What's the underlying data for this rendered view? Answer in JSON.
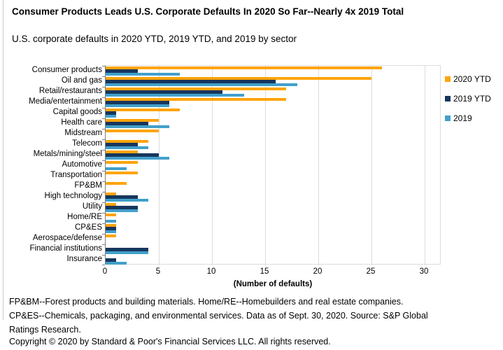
{
  "header": {
    "title": "Consumer Products Leads U.S. Corporate Defaults In 2020 So Far--Nearly 4x 2019 Total",
    "subtitle": "U.S. corporate defaults in 2020 YTD, 2019 YTD, and 2019 by sector"
  },
  "chart_data": {
    "type": "bar",
    "orientation": "horizontal",
    "title": "Consumer Products Leads U.S. Corporate Defaults In 2020 So Far--Nearly 4x 2019 Total",
    "subtitle": "U.S. corporate defaults in 2020 YTD, 2019 YTD, and 2019 by sector",
    "categories": [
      "Consumer products",
      "Oil and gas",
      "Retail/restaurants",
      "Media/entertainment",
      "Capital goods",
      "Health care",
      "Midstream",
      "Telecom",
      "Metals/mining/steel",
      "Automotive",
      "Transportation",
      "FP&BM",
      "High technology",
      "Utility",
      "Home/RE",
      "CP&ES",
      "Aerospace/defense",
      "Financial institutions",
      "Insurance"
    ],
    "series": [
      {
        "name": "2020 YTD",
        "color": "#FFA40A",
        "values": [
          26,
          25,
          17,
          17,
          7,
          5,
          5,
          4,
          3,
          3,
          3,
          2,
          1,
          1,
          1,
          1,
          1,
          0,
          0
        ]
      },
      {
        "name": "2019 YTD",
        "color": "#17365D",
        "values": [
          3,
          16,
          11,
          6,
          1,
          4,
          0,
          3,
          5,
          0,
          0,
          0,
          3,
          3,
          0,
          1,
          0,
          4,
          1
        ]
      },
      {
        "name": "2019",
        "color": "#41A0CB",
        "values": [
          7,
          18,
          13,
          6,
          1,
          6,
          0,
          4,
          6,
          2,
          0,
          0,
          4,
          3,
          1,
          1,
          0,
          4,
          2
        ]
      }
    ],
    "xlabel": "(Number of defaults)",
    "ylabel": "",
    "x_ticks": [
      0,
      5,
      10,
      15,
      20,
      25,
      30
    ],
    "xlim": [
      0,
      31.5
    ],
    "grid": true,
    "legend_position": "right",
    "colors": {
      "grid": "#dcdcdc",
      "axis": "#7f7f7f"
    }
  },
  "footnotes": {
    "lines": [
      "FP&BM--Forest products and building materials. Home/RE--Homebuilders and real estate companies.",
      "CP&ES--Chemicals, packaging, and environmental services. Data as of Sept. 30, 2020. Source: S&P Global",
      "Ratings Research."
    ],
    "copyright": "Copyright © 2020 by Standard & Poor's Financial Services LLC. All rights reserved."
  }
}
